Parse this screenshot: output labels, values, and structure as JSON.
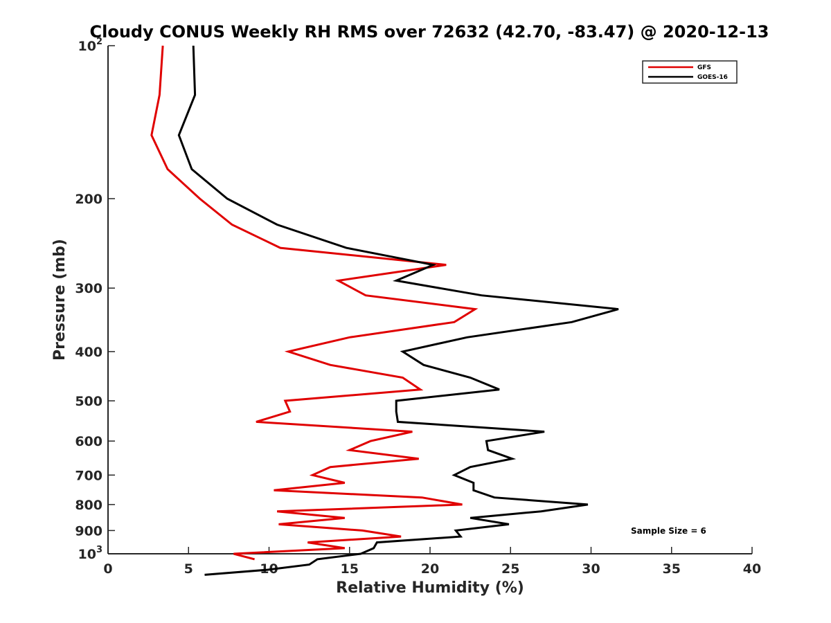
{
  "chart_data": {
    "type": "line",
    "title": "Cloudy CONUS Weekly RH RMS over 72632 (42.70, -83.47) @ 2020-12-13",
    "xlabel": "Relative Humidity (%)",
    "ylabel": "Pressure (mb)",
    "xlim": [
      0,
      40
    ],
    "ylim": [
      100,
      1000
    ],
    "y_scale": "log",
    "y_reversed": true,
    "grid": false,
    "legend_position": "top-right",
    "x_ticks": [
      "0",
      "5",
      "10",
      "15",
      "20",
      "25",
      "30",
      "35",
      "40"
    ],
    "y_ticks": [
      {
        "value": 100,
        "label": "10",
        "sup": "2"
      },
      {
        "value": 200,
        "label": "200",
        "sup": ""
      },
      {
        "value": 300,
        "label": "300",
        "sup": ""
      },
      {
        "value": 400,
        "label": "400",
        "sup": ""
      },
      {
        "value": 500,
        "label": "500",
        "sup": ""
      },
      {
        "value": 600,
        "label": "600",
        "sup": ""
      },
      {
        "value": 700,
        "label": "700",
        "sup": ""
      },
      {
        "value": 800,
        "label": "800",
        "sup": ""
      },
      {
        "value": 900,
        "label": "900",
        "sup": ""
      },
      {
        "value": 1000,
        "label": "10",
        "sup": "3"
      }
    ],
    "annotation": "Sample Size = 6",
    "series": [
      {
        "name": "GFS",
        "color": "#e00000",
        "points": [
          [
            3.4,
            100
          ],
          [
            3.2,
            125
          ],
          [
            2.7,
            150
          ],
          [
            3.7,
            175
          ],
          [
            5.7,
            200
          ],
          [
            7.7,
            225
          ],
          [
            10.7,
            250
          ],
          [
            21.0,
            270
          ],
          [
            14.3,
            290
          ],
          [
            16.0,
            310
          ],
          [
            22.8,
            330
          ],
          [
            21.5,
            350
          ],
          [
            15.0,
            375
          ],
          [
            11.2,
            400
          ],
          [
            13.8,
            425
          ],
          [
            18.3,
            450
          ],
          [
            19.4,
            475
          ],
          [
            11.0,
            500
          ],
          [
            11.3,
            525
          ],
          [
            9.2,
            550
          ],
          [
            18.9,
            575
          ],
          [
            16.3,
            600
          ],
          [
            15.0,
            625
          ],
          [
            19.3,
            650
          ],
          [
            13.8,
            675
          ],
          [
            12.7,
            700
          ],
          [
            14.7,
            725
          ],
          [
            10.3,
            750
          ],
          [
            19.5,
            775
          ],
          [
            22.0,
            800
          ],
          [
            10.5,
            825
          ],
          [
            14.7,
            850
          ],
          [
            10.6,
            875
          ],
          [
            15.8,
            900
          ],
          [
            18.2,
            925
          ],
          [
            12.4,
            950
          ],
          [
            14.7,
            975
          ],
          [
            7.8,
            1000
          ],
          [
            9.1,
            1025
          ]
        ]
      },
      {
        "name": "GOES-16",
        "color": "#000000",
        "points": [
          [
            5.3,
            100
          ],
          [
            5.4,
            125
          ],
          [
            4.4,
            150
          ],
          [
            5.2,
            175
          ],
          [
            7.4,
            200
          ],
          [
            10.5,
            225
          ],
          [
            14.8,
            250
          ],
          [
            20.2,
            270
          ],
          [
            17.9,
            290
          ],
          [
            23.2,
            310
          ],
          [
            31.7,
            330
          ],
          [
            28.8,
            350
          ],
          [
            22.3,
            375
          ],
          [
            18.3,
            400
          ],
          [
            19.6,
            425
          ],
          [
            22.5,
            450
          ],
          [
            24.3,
            475
          ],
          [
            17.9,
            500
          ],
          [
            17.9,
            525
          ],
          [
            18.0,
            550
          ],
          [
            27.1,
            575
          ],
          [
            23.5,
            600
          ],
          [
            23.6,
            625
          ],
          [
            25.1,
            650
          ],
          [
            22.5,
            675
          ],
          [
            21.5,
            700
          ],
          [
            22.7,
            725
          ],
          [
            22.7,
            750
          ],
          [
            24.0,
            775
          ],
          [
            29.8,
            800
          ],
          [
            26.9,
            825
          ],
          [
            22.5,
            850
          ],
          [
            24.9,
            875
          ],
          [
            21.6,
            900
          ],
          [
            21.9,
            925
          ],
          [
            16.7,
            950
          ],
          [
            16.5,
            975
          ],
          [
            15.7,
            1000
          ],
          [
            13.0,
            1025
          ],
          [
            12.5,
            1050
          ],
          [
            9.9,
            1075
          ],
          [
            6.0,
            1100
          ]
        ]
      }
    ]
  }
}
